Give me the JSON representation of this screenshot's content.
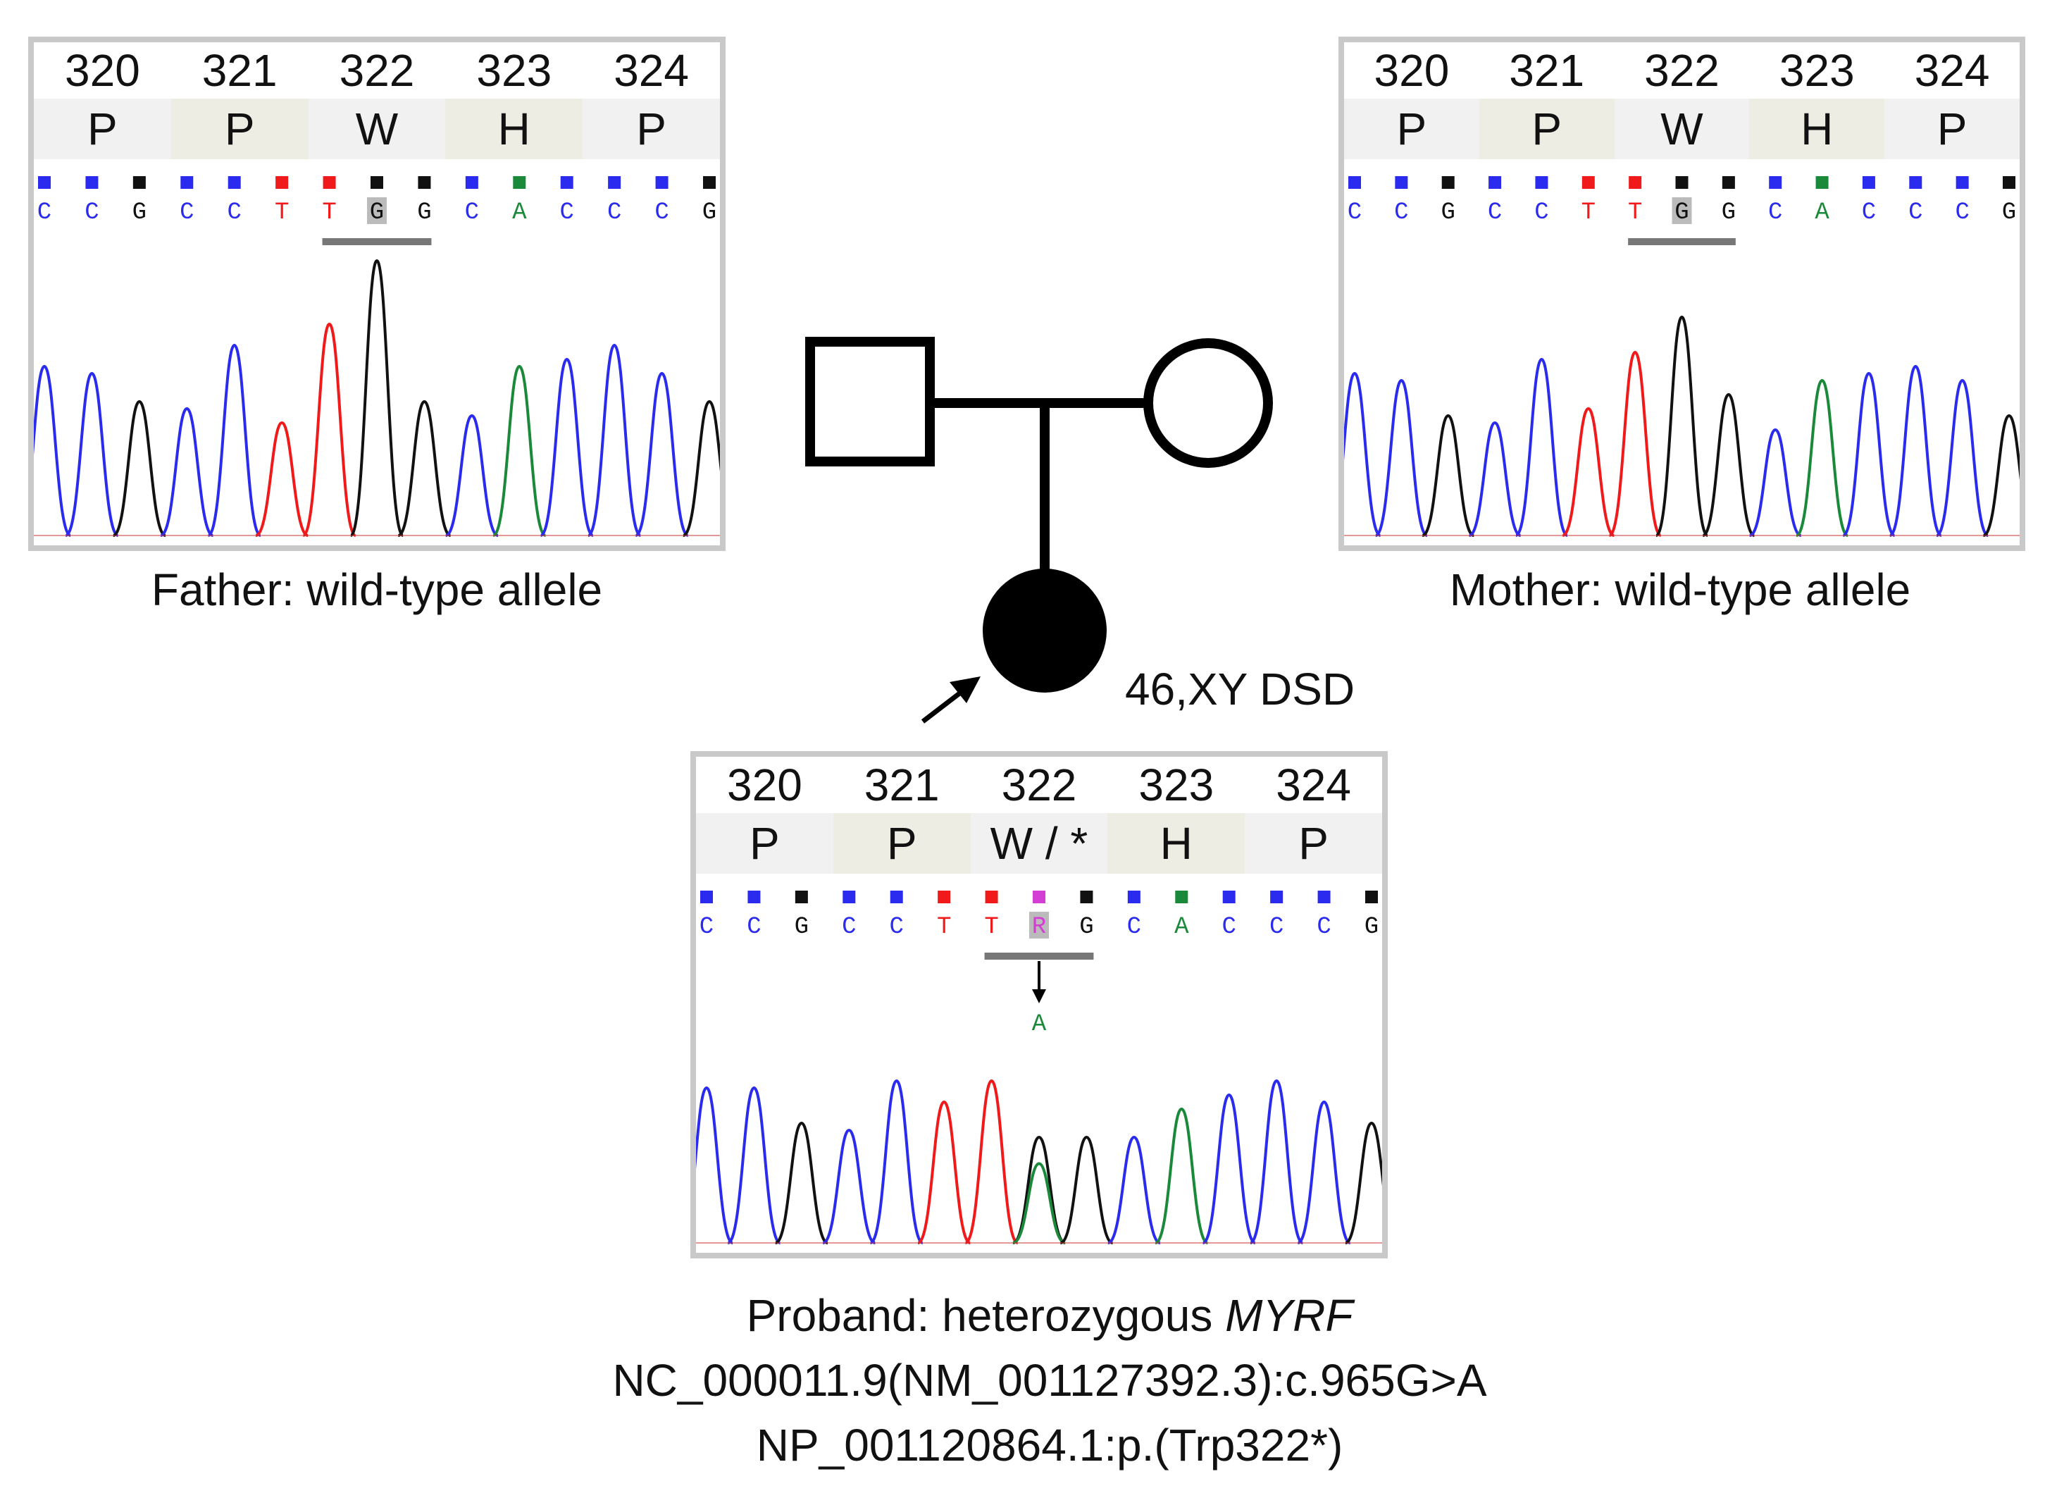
{
  "panels": {
    "father": {
      "positions": [
        "320",
        "321",
        "322",
        "323",
        "324"
      ],
      "residues": [
        "P",
        "P",
        "W",
        "H",
        "P"
      ],
      "bases": [
        "C",
        "C",
        "G",
        "C",
        "C",
        "T",
        "T",
        "G",
        "G",
        "C",
        "A",
        "C",
        "C",
        "C",
        "G"
      ],
      "caption": "Father: wild-type allele"
    },
    "mother": {
      "positions": [
        "320",
        "321",
        "322",
        "323",
        "324"
      ],
      "residues": [
        "P",
        "P",
        "W",
        "H",
        "P"
      ],
      "bases": [
        "C",
        "C",
        "G",
        "C",
        "C",
        "T",
        "T",
        "G",
        "G",
        "C",
        "A",
        "C",
        "C",
        "C",
        "G"
      ],
      "caption": "Mother: wild-type allele"
    },
    "proband": {
      "positions": [
        "320",
        "321",
        "322",
        "323",
        "324"
      ],
      "residues": [
        "P",
        "P",
        "W / *",
        "H",
        "P"
      ],
      "bases": [
        "C",
        "C",
        "G",
        "C",
        "C",
        "T",
        "T",
        "R",
        "G",
        "C",
        "A",
        "C",
        "C",
        "C",
        "G"
      ],
      "alt_base": "A",
      "caption_prefix": "Proband: heterozygous ",
      "gene": "MYRF",
      "hgvs_c": "NC_000011.9(NM_001127392.3):c.965G>A",
      "hgvs_p": "NP_001120864.1:p.(Trp322*)"
    }
  },
  "pedigree": {
    "label": "46,XY DSD"
  },
  "colors": {
    "C": "#2b2bf0",
    "T": "#f01a1a",
    "G": "#111111",
    "A": "#1a8a3a",
    "R": "#d23fd2"
  }
}
